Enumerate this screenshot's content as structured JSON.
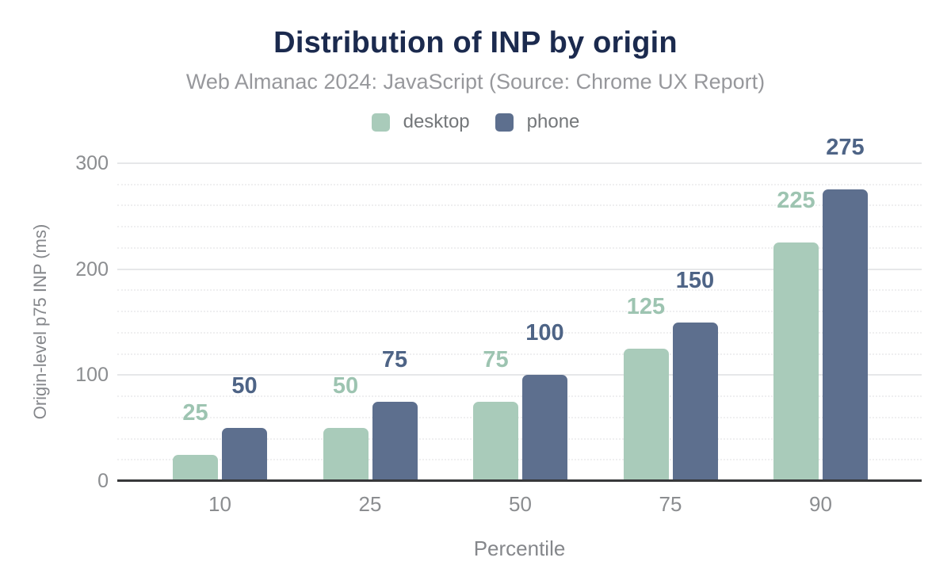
{
  "header": {
    "title": "Distribution of INP by origin",
    "subtitle": "Web Almanac 2024: JavaScript (Source: Chrome UX Report)"
  },
  "legend": {
    "items": [
      {
        "label": "desktop",
        "color": "#a9cbba"
      },
      {
        "label": "phone",
        "color": "#5d6f8e"
      }
    ]
  },
  "chart_data": {
    "type": "bar",
    "title": "Distribution of INP by origin",
    "subtitle": "Web Almanac 2024: JavaScript (Source: Chrome UX Report)",
    "categories": [
      "10",
      "25",
      "50",
      "75",
      "90"
    ],
    "series": [
      {
        "name": "desktop",
        "color": "#a9cbba",
        "label_color": "#9dc4b1",
        "values": [
          25,
          50,
          75,
          125,
          225
        ]
      },
      {
        "name": "phone",
        "color": "#5d6f8e",
        "label_color": "#4e6486",
        "values": [
          50,
          75,
          100,
          150,
          275
        ]
      }
    ],
    "xlabel": "Percentile",
    "ylabel": "Origin-level p75 INP (ms)",
    "ylim": [
      0,
      300
    ],
    "yticks": [
      0,
      100,
      200,
      300
    ],
    "minor_gridline_step": 20,
    "grid": true,
    "legend_position": "top",
    "data_labels": true
  },
  "colors": {
    "title": "#1b2a4e",
    "subtitle": "#97989c",
    "legend_text": "#74777a",
    "tick_label": "#8b8d90",
    "axis_title": "#85878b",
    "axis_line": "#37383a",
    "gridline_major": "#e6e7e9",
    "gridline_minor": "#efeff0",
    "background": "#ffffff"
  }
}
